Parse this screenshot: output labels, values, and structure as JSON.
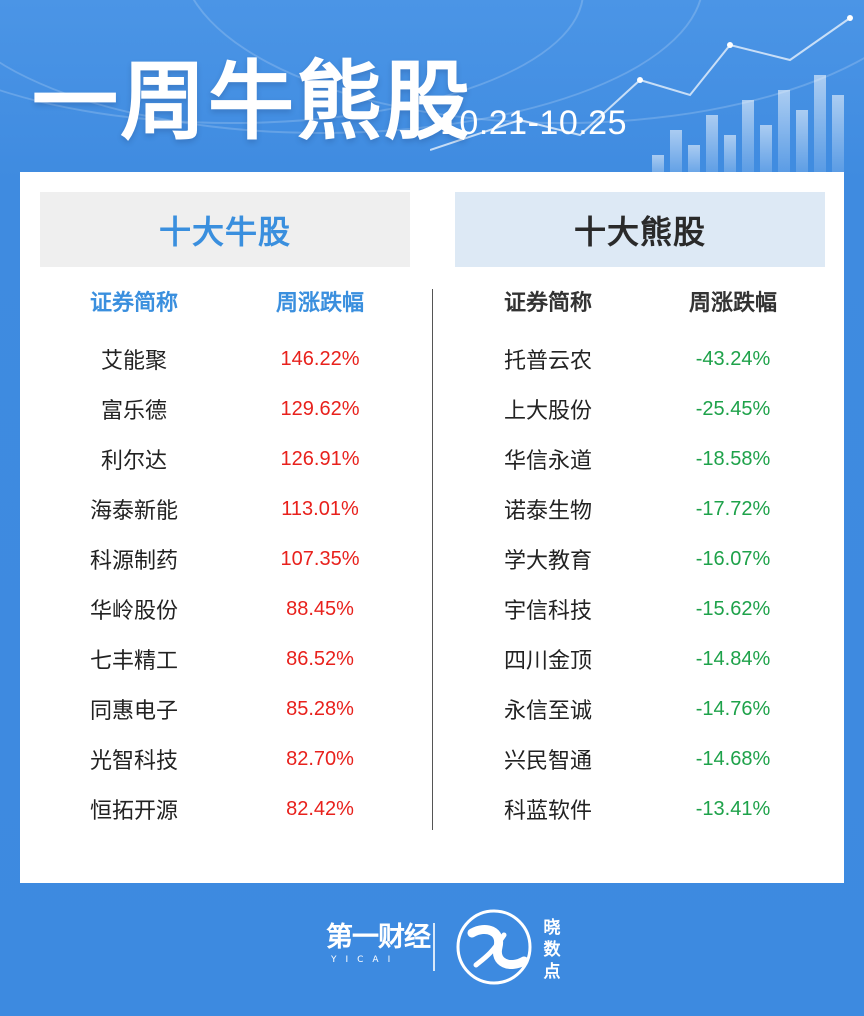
{
  "header": {
    "title": "一周牛熊股",
    "date_range": "10.21-10.25"
  },
  "bull": {
    "heading": "十大牛股",
    "col_name": "证券简称",
    "col_change": "周涨跌幅",
    "rows": [
      {
        "name": "艾能聚",
        "change": "146.22%"
      },
      {
        "name": "富乐德",
        "change": "129.62%"
      },
      {
        "name": "利尔达",
        "change": "126.91%"
      },
      {
        "name": "海泰新能",
        "change": "113.01%"
      },
      {
        "name": "科源制药",
        "change": "107.35%"
      },
      {
        "name": "华岭股份",
        "change": "88.45%"
      },
      {
        "name": "七丰精工",
        "change": "86.52%"
      },
      {
        "name": "同惠电子",
        "change": "85.28%"
      },
      {
        "name": "光智科技",
        "change": "82.70%"
      },
      {
        "name": "恒拓开源",
        "change": "82.42%"
      }
    ]
  },
  "bear": {
    "heading": "十大熊股",
    "col_name": "证券简称",
    "col_change": "周涨跌幅",
    "rows": [
      {
        "name": "托普云农",
        "change": "-43.24%"
      },
      {
        "name": "上大股份",
        "change": "-25.45%"
      },
      {
        "name": "华信永道",
        "change": "-18.58%"
      },
      {
        "name": "诺泰生物",
        "change": "-17.72%"
      },
      {
        "name": "学大教育",
        "change": "-16.07%"
      },
      {
        "name": "宇信科技",
        "change": "-15.62%"
      },
      {
        "name": "四川金顶",
        "change": "-14.84%"
      },
      {
        "name": "永信至诚",
        "change": "-14.76%"
      },
      {
        "name": "兴民智通",
        "change": "-14.68%"
      },
      {
        "name": "科蓝软件",
        "change": "-13.41%"
      }
    ]
  },
  "footer": {
    "brand": "第一财经",
    "brand_sub": "YICAI",
    "logo_text": "晓数点"
  },
  "colors": {
    "background": "#3d8ae0",
    "bull_accent": "#3a8fde",
    "rise": "#e8211c",
    "fall": "#1ea24a"
  }
}
